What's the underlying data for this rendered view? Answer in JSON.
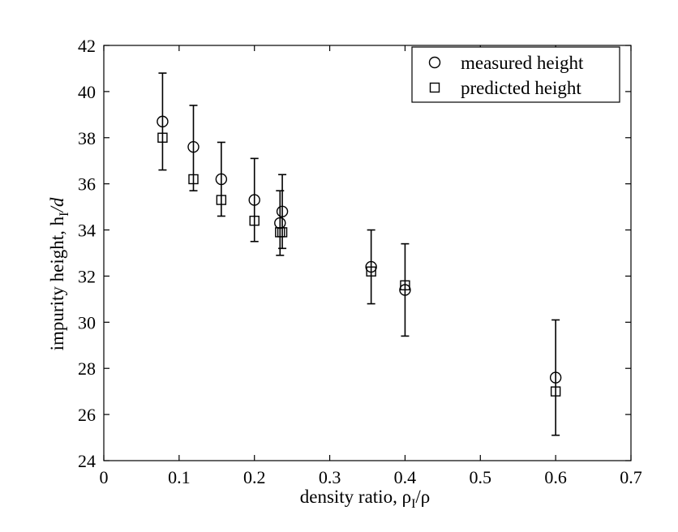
{
  "chart_data": {
    "type": "scatter",
    "xlabel": "density ratio, ρ",
    "xlabel_sub": "I",
    "xlabel_tail": "/ρ",
    "ylabel": "impurity height,  h",
    "ylabel_sub": "I",
    "ylabel_tail": "/d",
    "xlim": [
      0,
      0.7
    ],
    "ylim": [
      24,
      42
    ],
    "xticks": [
      0,
      0.1,
      0.2,
      0.3,
      0.4,
      0.5,
      0.6,
      0.7
    ],
    "xtick_labels": [
      "0",
      "0.1",
      "0.2",
      "0.3",
      "0.4",
      "0.5",
      "0.6",
      "0.7"
    ],
    "yticks": [
      24,
      26,
      28,
      30,
      32,
      34,
      36,
      38,
      40,
      42
    ],
    "ytick_labels": [
      "24",
      "26",
      "28",
      "30",
      "32",
      "34",
      "36",
      "38",
      "40",
      "42"
    ],
    "legend_position": "top-right",
    "grid": false,
    "series": [
      {
        "name": "measured height",
        "marker": "circle",
        "points": [
          {
            "x": 0.078,
            "y": 38.7,
            "err_low": 36.6,
            "err_high": 40.8
          },
          {
            "x": 0.119,
            "y": 37.6,
            "err_low": 35.7,
            "err_high": 39.4
          },
          {
            "x": 0.156,
            "y": 36.2,
            "err_low": 34.6,
            "err_high": 37.8
          },
          {
            "x": 0.2,
            "y": 35.3,
            "err_low": 33.5,
            "err_high": 37.1
          },
          {
            "x": 0.234,
            "y": 34.3,
            "err_low": 32.9,
            "err_high": 35.7
          },
          {
            "x": 0.237,
            "y": 34.8,
            "err_low": 33.2,
            "err_high": 36.4
          },
          {
            "x": 0.355,
            "y": 32.4,
            "err_low": 30.8,
            "err_high": 34.0
          },
          {
            "x": 0.4,
            "y": 31.4,
            "err_low": 29.4,
            "err_high": 33.4
          },
          {
            "x": 0.6,
            "y": 27.6,
            "err_low": 25.1,
            "err_high": 30.1
          }
        ]
      },
      {
        "name": "predicted height",
        "marker": "square",
        "points": [
          {
            "x": 0.078,
            "y": 38.0
          },
          {
            "x": 0.119,
            "y": 36.2
          },
          {
            "x": 0.156,
            "y": 35.3
          },
          {
            "x": 0.2,
            "y": 34.4
          },
          {
            "x": 0.234,
            "y": 33.9
          },
          {
            "x": 0.237,
            "y": 33.9
          },
          {
            "x": 0.355,
            "y": 32.2
          },
          {
            "x": 0.4,
            "y": 31.6
          },
          {
            "x": 0.6,
            "y": 27.0
          }
        ]
      }
    ]
  }
}
